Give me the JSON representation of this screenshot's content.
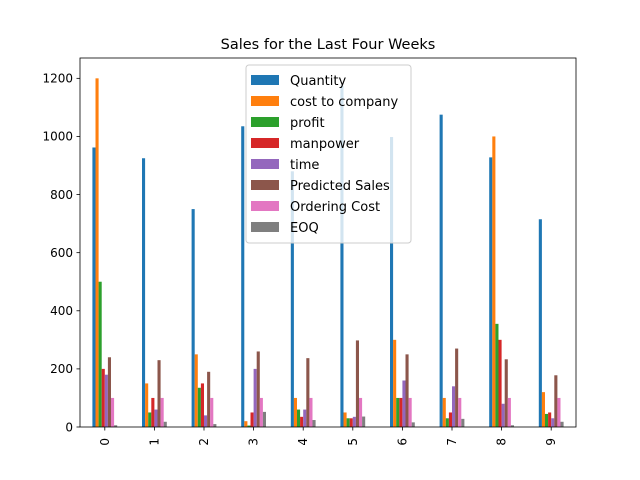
{
  "chart_data": {
    "type": "bar",
    "title": "Sales for the Last Four Weeks",
    "xlabel": "",
    "ylabel": "",
    "categories": [
      "0",
      "1",
      "2",
      "3",
      "4",
      "5",
      "6",
      "7",
      "8",
      "9"
    ],
    "ylim": [
      0,
      1270
    ],
    "yticks": [
      0,
      200,
      400,
      600,
      800,
      1000,
      1200
    ],
    "grid": false,
    "legend_position": "top-center",
    "series": [
      {
        "name": "Quantity",
        "color": "#1f77b4",
        "values": [
          962,
          925,
          750,
          1035,
          880,
          1175,
          998,
          1075,
          928,
          715
        ]
      },
      {
        "name": "cost to company",
        "color": "#ff7f0e",
        "values": [
          1200,
          150,
          250,
          20,
          100,
          50,
          300,
          100,
          1000,
          120
        ]
      },
      {
        "name": "profit",
        "color": "#2ca02c",
        "values": [
          500,
          50,
          135,
          5,
          60,
          30,
          100,
          30,
          355,
          45
        ]
      },
      {
        "name": "manpower",
        "color": "#d62728",
        "values": [
          200,
          100,
          150,
          50,
          35,
          30,
          100,
          50,
          300,
          50
        ]
      },
      {
        "name": "time",
        "color": "#9467bd",
        "values": [
          180,
          60,
          40,
          200,
          60,
          35,
          160,
          140,
          80,
          30
        ]
      },
      {
        "name": "Predicted Sales",
        "color": "#8c564b",
        "values": [
          240,
          230,
          190,
          260,
          237,
          298,
          250,
          270,
          233,
          178
        ]
      },
      {
        "name": "Ordering Cost",
        "color": "#e377c2",
        "values": [
          100,
          100,
          100,
          100,
          100,
          100,
          100,
          100,
          100,
          100
        ]
      },
      {
        "name": "EOQ",
        "color": "#7f7f7f",
        "values": [
          6,
          18,
          10,
          52,
          24,
          36,
          16,
          28,
          6,
          18
        ]
      }
    ]
  }
}
